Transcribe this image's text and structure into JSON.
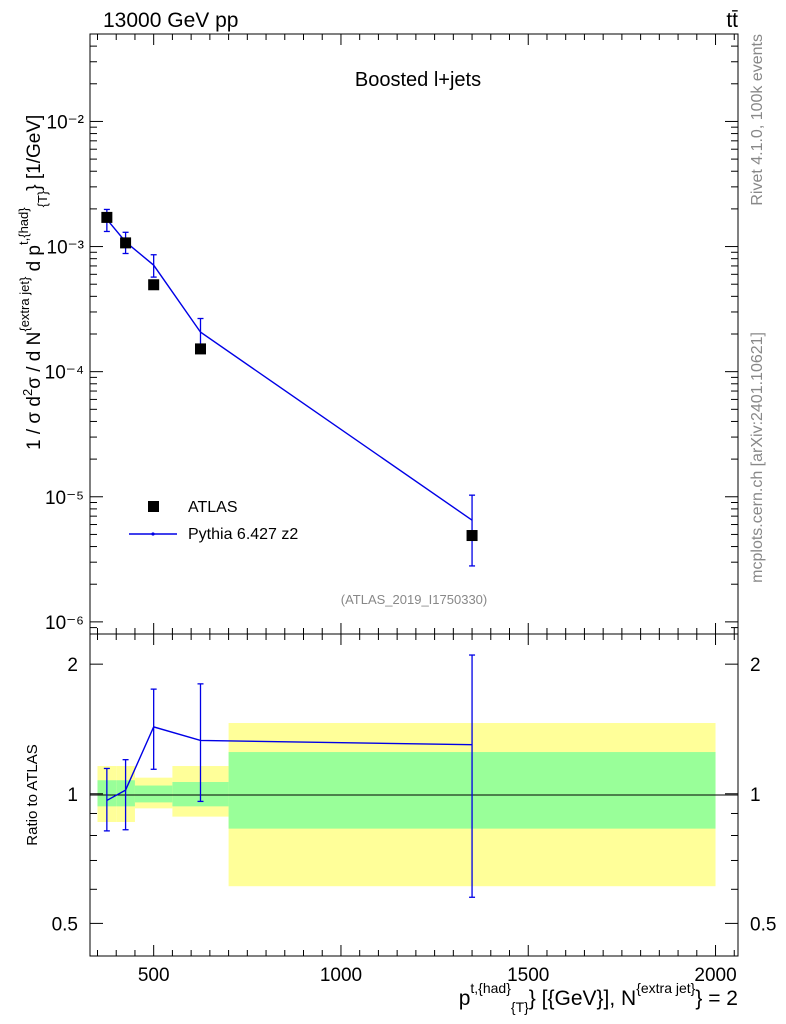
{
  "header": {
    "left": "13000 GeV pp",
    "right": "tt̄"
  },
  "side_labels": {
    "rivet": "Rivet 4.1.0,  100k events",
    "mcplots": "mcplots.cern.ch [arXiv:2401.10621]"
  },
  "chart_data": [
    {
      "type": "scatter",
      "panel": "main",
      "title": "Boosted l+jets",
      "annotation": "(ATLAS_2019_I1750330)",
      "ylabel": "1 / σ d²σ / d N^{extra jet} d p^{t,{had}}_{T} [1/GeV]",
      "yscale": "log",
      "xlim": [
        330,
        2060
      ],
      "ylim": [
        8e-07,
        0.05
      ],
      "yticks": [
        1e-06,
        1e-05,
        0.0001,
        0.001,
        0.01
      ],
      "ytick_labels": [
        "10⁻⁶",
        "10⁻⁵",
        "10⁻⁴",
        "10⁻³",
        "10⁻²"
      ],
      "legend": {
        "position": "bottom-left",
        "entries": [
          "ATLAS",
          "Pythia 6.427 z2"
        ]
      },
      "series": [
        {
          "name": "ATLAS",
          "style": "markers",
          "x": [
            375,
            425,
            500,
            625,
            1350
          ],
          "y": [
            0.00171,
            0.00107,
            0.000495,
            0.000152,
            4.9e-06
          ]
        },
        {
          "name": "Pythia 6.427 z2",
          "style": "line",
          "x": [
            375,
            425,
            500,
            625,
            1350
          ],
          "y": [
            0.00165,
            0.00109,
            0.00071,
            0.000207,
            6.5e-06
          ],
          "yerr_low": [
            0.00132,
            0.00088,
            0.00057,
            0.000158,
            2.8e-06
          ],
          "yerr_high": [
            0.00198,
            0.0013,
            0.00086,
            0.000266,
            1.03e-05
          ]
        }
      ]
    },
    {
      "type": "line",
      "panel": "ratio",
      "ylabel": "Ratio to ATLAS",
      "yscale": "log",
      "xlabel": "p^{t,{had}}_{T} [{GeV}], N^{extra jet} = 2",
      "xlim": [
        330,
        2060
      ],
      "ylim": [
        0.42,
        2.35
      ],
      "xticks": [
        500,
        1000,
        1500,
        2000
      ],
      "yticks": [
        0.5,
        1,
        2
      ],
      "bins": [
        {
          "lo": 350,
          "hi": 400,
          "inner": [
            0.935,
            1.075
          ],
          "outer": [
            0.86,
            1.16
          ]
        },
        {
          "lo": 400,
          "hi": 450,
          "inner": [
            0.935,
            1.075
          ],
          "outer": [
            0.86,
            1.16
          ]
        },
        {
          "lo": 450,
          "hi": 550,
          "inner": [
            0.955,
            1.045
          ],
          "outer": [
            0.925,
            1.09
          ]
        },
        {
          "lo": 550,
          "hi": 700,
          "inner": [
            0.935,
            1.065
          ],
          "outer": [
            0.885,
            1.16
          ]
        },
        {
          "lo": 700,
          "hi": 2000,
          "inner": [
            0.83,
            1.25
          ],
          "outer": [
            0.61,
            1.46
          ]
        }
      ],
      "series": [
        {
          "name": "Pythia 6.427 z2",
          "x": [
            375,
            425,
            500,
            625,
            1350
          ],
          "y": [
            0.965,
            1.02,
            1.43,
            1.33,
            1.3
          ],
          "yerr_low": [
            0.82,
            0.825,
            1.14,
            0.96,
            0.575
          ],
          "yerr_high": [
            1.145,
            1.2,
            1.75,
            1.8,
            2.1
          ]
        }
      ]
    }
  ]
}
